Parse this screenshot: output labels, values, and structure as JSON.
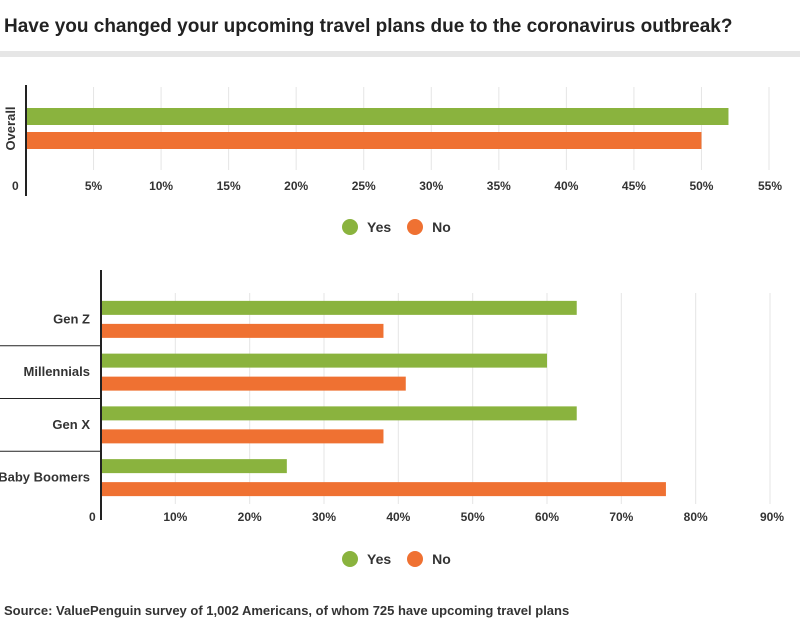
{
  "title": "Have you changed your upcoming travel plans due to the coronavirus outbreak?",
  "source": "Source: ValuePenguin survey of 1,002 Americans, of whom 725 have upcoming travel plans",
  "colors": {
    "yes": "#8ab33e",
    "no": "#ef7132",
    "grid": "#e5e5e5",
    "axis": "#222222"
  },
  "legend": [
    "Yes",
    "No"
  ],
  "chart_data": [
    {
      "type": "bar",
      "orientation": "horizontal",
      "categories": [
        "Overall"
      ],
      "series": [
        {
          "name": "Yes",
          "values": [
            52
          ]
        },
        {
          "name": "No",
          "values": [
            50
          ]
        }
      ],
      "xlim": [
        0,
        55
      ],
      "xticks": [
        "0",
        "5%",
        "10%",
        "15%",
        "20%",
        "25%",
        "30%",
        "35%",
        "40%",
        "45%",
        "50%",
        "55%"
      ],
      "grid": true,
      "legend_position": "bottom"
    },
    {
      "type": "bar",
      "orientation": "horizontal",
      "categories": [
        "Gen Z",
        "Millennials",
        "Gen X",
        "Baby Boomers"
      ],
      "series": [
        {
          "name": "Yes",
          "values": [
            64,
            60,
            64,
            25
          ]
        },
        {
          "name": "No",
          "values": [
            38,
            41,
            38,
            76
          ]
        }
      ],
      "xlim": [
        0,
        90
      ],
      "xticks": [
        "0",
        "10%",
        "20%",
        "30%",
        "40%",
        "50%",
        "60%",
        "70%",
        "80%",
        "90%"
      ],
      "grid": true,
      "legend_position": "bottom"
    }
  ]
}
